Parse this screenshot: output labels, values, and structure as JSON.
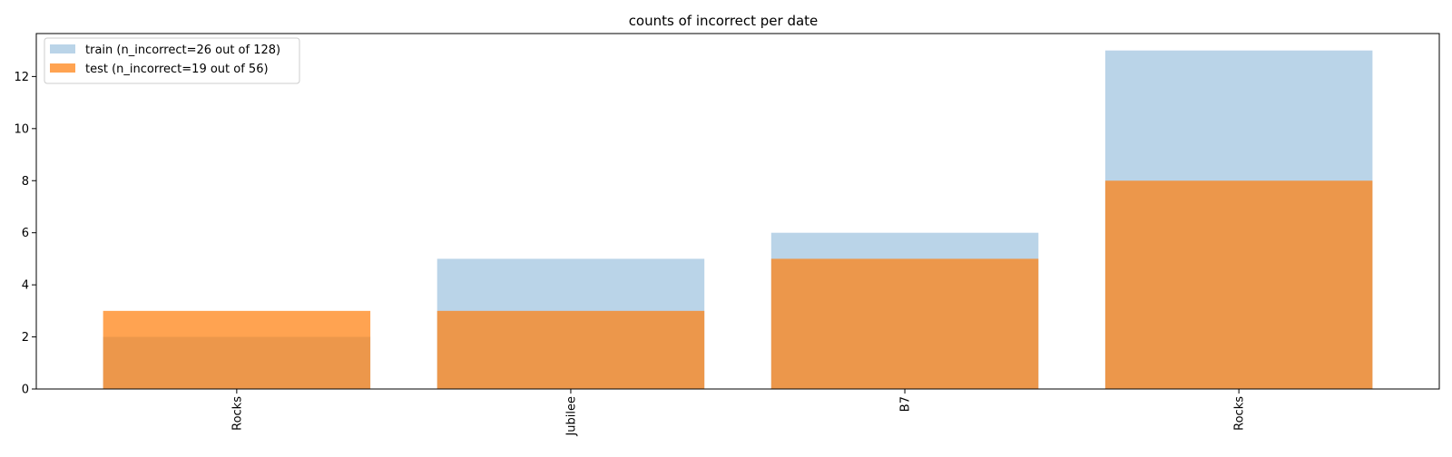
{
  "chart_data": {
    "type": "bar",
    "title": "counts of incorrect per date",
    "xlabel": "",
    "ylabel": "",
    "categories": [
      "Rocks",
      "Jubilee",
      "B7",
      "Rocks"
    ],
    "series": [
      {
        "name": "train (n_incorrect=26 out of 128)",
        "values": [
          2,
          5,
          6,
          13
        ],
        "color": "#aecde4",
        "opacity": 0.85
      },
      {
        "name": "test (n_incorrect=19 out of 56)",
        "values": [
          3,
          3,
          5,
          8
        ],
        "color": "#ff7f0e",
        "opacity": 0.72
      }
    ],
    "ylim": [
      0,
      13.65
    ],
    "yticks": [
      0,
      2,
      4,
      6,
      8,
      10,
      12
    ],
    "grid": false,
    "legend_position": "top-left"
  }
}
